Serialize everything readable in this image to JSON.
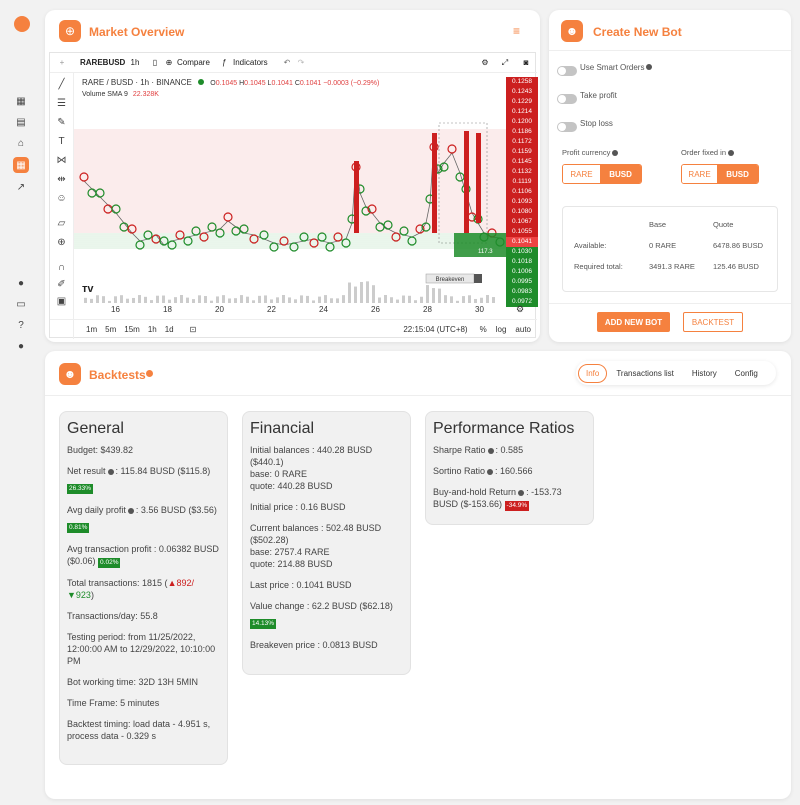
{
  "colors": {
    "accent": "#f5813f",
    "candle_up": "#1e8c2a",
    "candle_down": "#cc1f1f"
  },
  "sidebar": {
    "items": [
      {
        "icon": "dashboard-icon"
      },
      {
        "icon": "wallet-icon"
      },
      {
        "icon": "bank-icon"
      },
      {
        "icon": "grid-icon"
      },
      {
        "icon": "trend-icon"
      },
      {
        "icon": "bell-icon"
      },
      {
        "icon": "chat-icon"
      },
      {
        "icon": "help-icon"
      },
      {
        "icon": "user-icon"
      }
    ]
  },
  "market": {
    "title": "Market Overview",
    "symbol": "RAREBUSD",
    "interval": "1h",
    "compare_label": "Compare",
    "indicators_label": "Indicators",
    "legend_pair": "RARE / BUSD · 1h · BINANCE",
    "ohlc": {
      "o_label": "O",
      "o": "0.1045",
      "h_label": "H",
      "h": "0.1045",
      "l_label": "L",
      "l": "0.1041",
      "c_label": "C",
      "c": "0.1041",
      "change": "−0.0003 (−0.29%)"
    },
    "volume_label": "Volume SMA 9",
    "volume_value": "22.328K",
    "price_labels": [
      "0.1258",
      "0.1243",
      "0.1229",
      "0.1214",
      "0.1200",
      "0.1186",
      "0.1172",
      "0.1159",
      "0.1145",
      "0.1132",
      "0.1119",
      "0.1106",
      "0.1093",
      "0.1080",
      "0.1067",
      "0.1055",
      "0.1041",
      "0.1030",
      "0.1018",
      "0.1006",
      "0.0995",
      "0.0983",
      "0.0972"
    ],
    "x_labels": [
      "16",
      "18",
      "20",
      "22",
      "24",
      "26",
      "28",
      "30"
    ],
    "timeframes": [
      "1m",
      "5m",
      "15m",
      "1h",
      "1d"
    ],
    "clock": "22:15:04 (UTC+8)",
    "pct_label": "%",
    "log_label": "log",
    "auto_label": "auto",
    "breakeven_label": "Breakeven",
    "breakeven_value": "117.3"
  },
  "create_bot": {
    "title": "Create New Bot",
    "use_smart_orders": "Use Smart Orders",
    "take_profit": "Take profit",
    "stop_loss": "Stop loss",
    "profit_currency_label": "Profit currency",
    "order_fixed_label": "Order fixed in",
    "currencies": [
      "RARE",
      "BUSD"
    ],
    "table": {
      "col_base": "Base",
      "col_quote": "Quote",
      "rows": [
        {
          "label": "Available:",
          "base": "0 RARE",
          "quote": "6478.86 BUSD"
        },
        {
          "label": "Required total:",
          "base": "3491.3 RARE",
          "quote": "125.46 BUSD"
        }
      ]
    },
    "add_bot_label": "ADD NEW BOT",
    "backtest_label": "BACKTEST"
  },
  "backtests": {
    "title": "Backtests",
    "tabs": [
      "Info",
      "Transactions list",
      "History",
      "Config"
    ],
    "general": {
      "title": "General",
      "budget": "Budget: $439.82",
      "net_result_label": "Net result",
      "net_result_value": ": 115.84 BUSD ($115.8)",
      "net_result_pct": "26.33%",
      "avg_daily_label": "Avg daily profit",
      "avg_daily_value": ": 3.56 BUSD ($3.56)",
      "avg_daily_pct": "0.81%",
      "avg_tx_line1": "Avg transaction profit : 0.06382 BUSD",
      "avg_tx_line2": "($0.06)",
      "avg_tx_pct": "0.02%",
      "total_tx_prefix": "Total transactions: 1815 (",
      "total_tx_up": "▲892/",
      "total_tx_down": "▼923",
      "total_tx_suffix": ")",
      "tx_per_day": "Transactions/day: 55.8",
      "testing_period": "Testing period: from 11/25/2022, 12:00:00 AM to 12/29/2022, 10:10:00 PM",
      "working_time": "Bot working time: 32D 13H 5MIN",
      "time_frame": "Time Frame: 5 minutes",
      "timing": "Backtest timing: load data - 4.951 s, process data - 0.329 s"
    },
    "financial": {
      "title": "Financial",
      "initial_balances": "Initial balances : 440.28 BUSD ($440.1)",
      "initial_base": "base: 0 RARE",
      "initial_quote": "quote: 440.28 BUSD",
      "initial_price": "Initial price : 0.16 BUSD",
      "current_balances": "Current balances : 502.48 BUSD ($502.28)",
      "current_base": "base: 2757.4 RARE",
      "current_quote": "quote: 214.88 BUSD",
      "last_price": "Last price : 0.1041 BUSD",
      "value_change": "Value change : 62.2 BUSD ($62.18)",
      "value_change_pct": "14.13%",
      "breakeven_price": "Breakeven price : 0.0813 BUSD"
    },
    "ratios": {
      "title": "Performance Ratios",
      "sharpe_label": "Sharpe Ratio",
      "sharpe_value": ": 0.585",
      "sortino_label": "Sortino Ratio",
      "sortino_value": ": 160.566",
      "bah_label": "Buy-and-hold Return",
      "bah_value": ": -153.73 BUSD ($-153.66)",
      "bah_pct": "-34.9%"
    }
  }
}
